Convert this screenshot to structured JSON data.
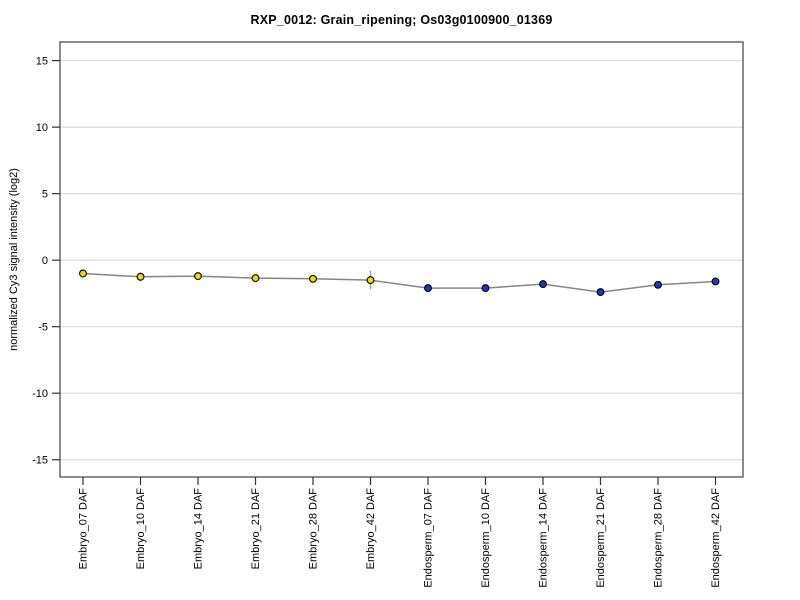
{
  "chart": {
    "title": "RXP_0012: Grain_ripening; Os03g0100900_01369",
    "ylabel": "normalized Cy3 signal intensity (log2)"
  },
  "chart_data": {
    "type": "line",
    "title": "RXP_0012: Grain_ripening; Os03g0100900_01369",
    "xlabel": "",
    "ylabel": "normalized Cy3 signal intensity (log2)",
    "ylim": [
      -16.3,
      16.4
    ],
    "yticks": [
      15,
      10,
      5,
      0,
      -5,
      -10,
      -15
    ],
    "grid": true,
    "legend_position": "none",
    "x_tick_rotation": -90,
    "categories": [
      "Embryo_07 DAF",
      "Embryo_10 DAF",
      "Embryo_14 DAF",
      "Embryo_21 DAF",
      "Embryo_28 DAF",
      "Embryo_42 DAF",
      "Endosperm_07 DAF",
      "Endosperm_10 DAF",
      "Endosperm_14 DAF",
      "Endosperm_21 DAF",
      "Endosperm_28 DAF",
      "Endosperm_42 DAF"
    ],
    "series": [
      {
        "name": "Embryo",
        "marker_color": "#F0DC00",
        "x_indices": [
          0,
          1,
          2,
          3,
          4,
          5
        ],
        "values": [
          -1.0,
          -1.25,
          -1.2,
          -1.35,
          -1.4,
          -1.5
        ],
        "errors": [
          0.3,
          0.35,
          0.2,
          0.25,
          0.2,
          0.7
        ]
      },
      {
        "name": "Endosperm",
        "marker_color": "#2136C9",
        "x_indices": [
          6,
          7,
          8,
          9,
          10,
          11
        ],
        "values": [
          -2.1,
          -2.1,
          -1.8,
          -2.4,
          -1.85,
          -1.6
        ],
        "errors": [
          0.1,
          0.1,
          0.15,
          0.1,
          0.1,
          0.1
        ]
      }
    ],
    "connected_across_series": true,
    "colors": {
      "line": "#858585",
      "error_bar": "#9a9a9a",
      "marker_outline": "#000000",
      "gridline": "#d9d9d9",
      "plot_border": "#4d4d4d",
      "tick": "#333333",
      "background": "#ffffff"
    }
  }
}
